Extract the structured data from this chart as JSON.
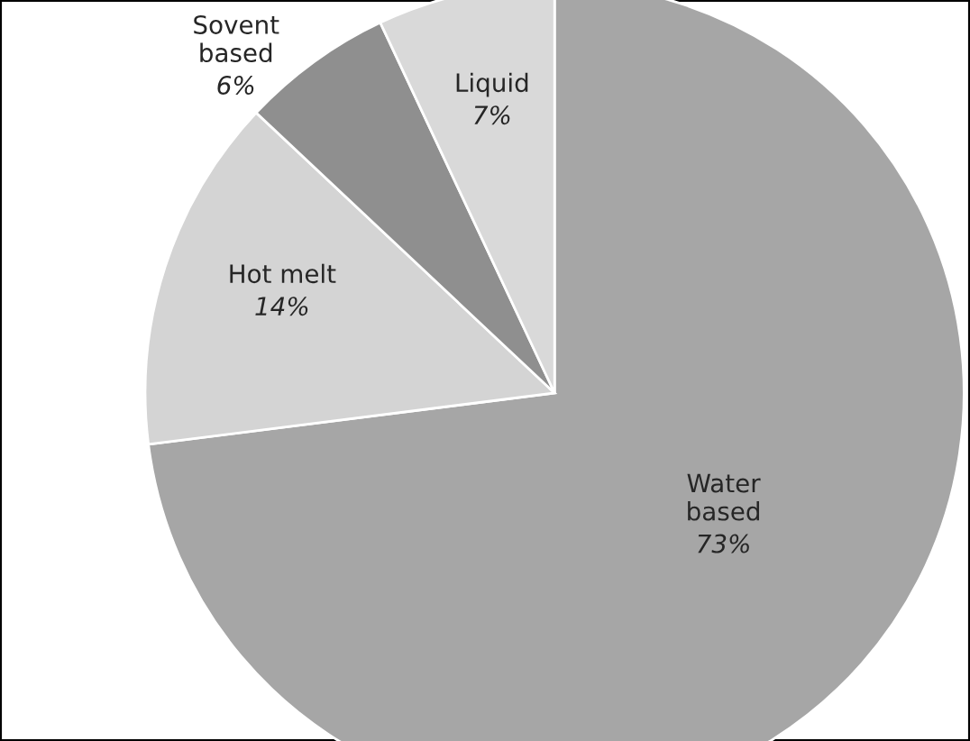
{
  "chart_data": {
    "type": "pie",
    "categories": [
      "Water\nbased",
      "Hot melt",
      "Sovent\nbased",
      "Liquid"
    ],
    "values": [
      73,
      14,
      6,
      7
    ],
    "colors": [
      "#a6a6a6",
      "#d4d4d4",
      "#8f8f8f",
      "#d9d9d9"
    ],
    "value_labels": [
      "73%",
      "14%",
      "6%",
      "7%"
    ]
  }
}
